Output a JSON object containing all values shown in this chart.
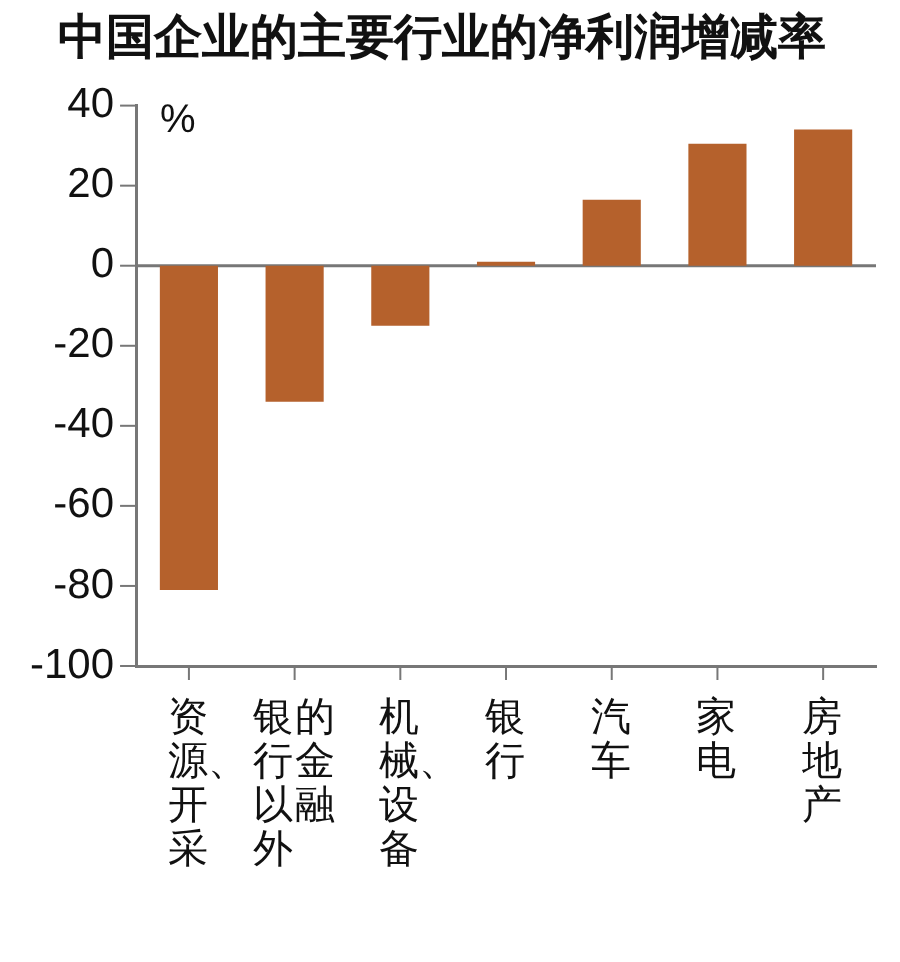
{
  "chart_data": {
    "type": "bar",
    "title": "中国企业的主要行业的净利润增减率",
    "ylabel": "%",
    "categories": [
      "资源、开采",
      "银行以外的金融",
      "机械、设备",
      "银行",
      "汽车",
      "家电",
      "房地产"
    ],
    "values": [
      -81,
      -34,
      -15,
      1,
      16.5,
      30.5,
      34
    ],
    "color": "#b5612c",
    "ref_lines": [
      {
        "axis": "y",
        "value": 0,
        "color": "#777777"
      }
    ],
    "ylim": [
      -100,
      40
    ],
    "yticks": [
      -100,
      -80,
      -60,
      -40,
      -20,
      0,
      20,
      40
    ],
    "grid": false,
    "legend": false
  }
}
